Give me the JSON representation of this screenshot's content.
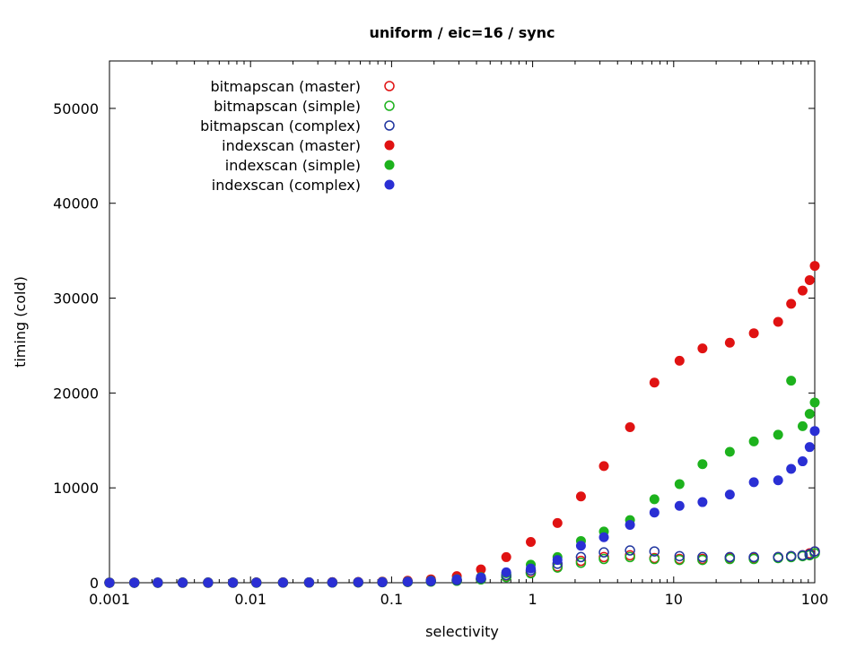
{
  "title": "uniform / eic=16 / sync",
  "chart_data": {
    "type": "scatter",
    "title": "uniform / eic=16 / sync",
    "xlabel": "selectivity",
    "ylabel": "timing (cold)",
    "x_scale": "log",
    "xlim": [
      0.001,
      100
    ],
    "ylim": [
      0,
      55000
    ],
    "x_ticks": [
      0.001,
      0.01,
      0.1,
      1,
      10,
      100
    ],
    "x_tick_labels": [
      "0.001",
      "0.01",
      "0.1",
      "1",
      "10",
      "100"
    ],
    "y_ticks": [
      0,
      10000,
      20000,
      30000,
      40000,
      50000
    ],
    "y_tick_labels": [
      "0",
      "10000",
      "20000",
      "30000",
      "40000",
      "50000"
    ],
    "grid": false,
    "legend_position": "top-left-inside",
    "x": [
      0.001,
      0.0015,
      0.0022,
      0.0033,
      0.005,
      0.0075,
      0.011,
      0.017,
      0.026,
      0.038,
      0.058,
      0.086,
      0.13,
      0.19,
      0.29,
      0.43,
      0.65,
      0.97,
      1.5,
      2.2,
      3.2,
      4.9,
      7.3,
      11,
      16,
      25,
      37,
      55,
      68,
      82,
      92,
      100
    ],
    "series": [
      {
        "name": "bitmapscan (master)",
        "marker": "open",
        "color": "#e01212",
        "values": [
          3,
          4,
          5,
          6,
          8,
          10,
          13,
          17,
          22,
          30,
          42,
          60,
          90,
          140,
          230,
          380,
          650,
          1100,
          1700,
          2300,
          2700,
          2900,
          2600,
          2500,
          2500,
          2600,
          2600,
          2700,
          2800,
          2900,
          3100,
          3300
        ]
      },
      {
        "name": "bitmapscan (simple)",
        "marker": "open",
        "color": "#1db21d",
        "values": [
          3,
          4,
          5,
          6,
          7,
          9,
          12,
          16,
          21,
          28,
          40,
          55,
          85,
          130,
          210,
          350,
          600,
          1000,
          1600,
          2100,
          2500,
          2700,
          2500,
          2400,
          2400,
          2500,
          2500,
          2600,
          2700,
          2800,
          2900,
          3100
        ]
      },
      {
        "name": "bitmapscan (complex)",
        "marker": "open",
        "color": "#20359f",
        "values": [
          4,
          5,
          6,
          7,
          9,
          12,
          15,
          20,
          26,
          35,
          50,
          70,
          110,
          170,
          280,
          460,
          800,
          1300,
          2000,
          2700,
          3200,
          3400,
          3300,
          2800,
          2700,
          2700,
          2700,
          2700,
          2800,
          2900,
          3000,
          3300
        ]
      },
      {
        "name": "indexscan (master)",
        "marker": "filled",
        "color": "#e01212",
        "values": [
          5,
          6,
          8,
          10,
          13,
          17,
          22,
          30,
          40,
          55,
          80,
          120,
          210,
          360,
          700,
          1400,
          2700,
          4300,
          6300,
          9100,
          12300,
          16400,
          21100,
          23400,
          24700,
          25300,
          26300,
          27500,
          29400,
          30800,
          31900,
          33400
        ]
      },
      {
        "name": "indexscan (simple)",
        "marker": "filled",
        "color": "#1db21d",
        "values": [
          4,
          5,
          6,
          8,
          10,
          13,
          17,
          22,
          30,
          40,
          55,
          80,
          130,
          220,
          380,
          600,
          1000,
          1900,
          2700,
          4400,
          5400,
          6600,
          8800,
          10400,
          12500,
          13800,
          14900,
          15600,
          21300,
          16500,
          17800,
          19000
        ]
      },
      {
        "name": "indexscan (complex)",
        "marker": "filled",
        "color": "#2a2fd4",
        "values": [
          4,
          5,
          6,
          8,
          10,
          13,
          17,
          22,
          30,
          40,
          55,
          75,
          120,
          200,
          350,
          560,
          1100,
          1500,
          2400,
          3900,
          4800,
          6100,
          7400,
          8100,
          8500,
          9300,
          10600,
          10800,
          12000,
          12800,
          14300,
          16000
        ]
      }
    ]
  }
}
